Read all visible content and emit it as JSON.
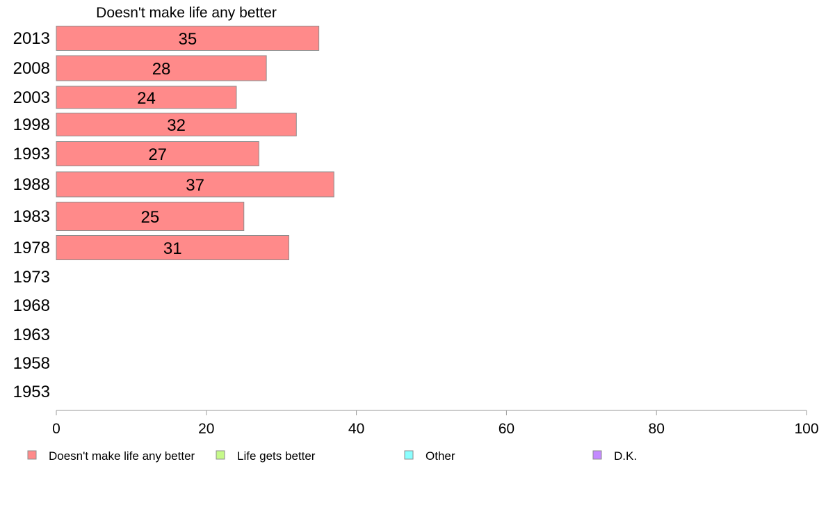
{
  "chart_data": {
    "type": "bar",
    "orientation": "horizontal",
    "stacked": true,
    "title": "Doesn't make life any better",
    "categories": [
      "2013",
      "2008",
      "2003",
      "1998",
      "1993",
      "1988",
      "1983",
      "1978",
      "1973",
      "1968",
      "1963",
      "1958",
      "1953"
    ],
    "series": [
      {
        "name": "Doesn't make life any better",
        "color": "#ff8a8a",
        "values": [
          35,
          28,
          24,
          32,
          27,
          37,
          25,
          31,
          null,
          null,
          null,
          null,
          null
        ]
      },
      {
        "name": "Life gets better",
        "color": "#c6f98a",
        "values": [
          null,
          null,
          null,
          null,
          null,
          null,
          null,
          null,
          null,
          null,
          null,
          null,
          null
        ]
      },
      {
        "name": "Other",
        "color": "#8affff",
        "values": [
          null,
          null,
          null,
          null,
          null,
          null,
          null,
          null,
          null,
          null,
          null,
          null,
          null
        ]
      },
      {
        "name": "D.K.",
        "color": "#c48aff",
        "values": [
          null,
          null,
          null,
          null,
          null,
          null,
          null,
          null,
          null,
          null,
          null,
          null,
          null
        ]
      }
    ],
    "xlim": [
      0,
      100
    ],
    "xticks": [
      0,
      20,
      40,
      60,
      80,
      100
    ],
    "grid": false,
    "legend_position": "bottom"
  }
}
